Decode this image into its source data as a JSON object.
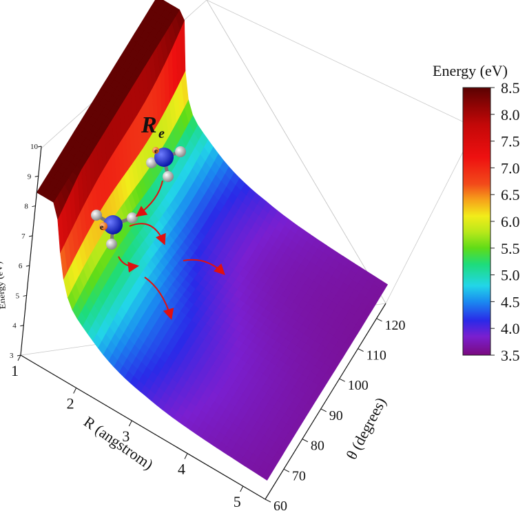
{
  "chart_data": {
    "type": "surface3d",
    "zlabel": "Energy (eV)",
    "xlabel": "R (angstrom)",
    "ylabel": "θ (degrees)",
    "colorbar_title": "Energy (eV)",
    "annotation": "R",
    "annotation_subscript": "e",
    "electron_label": "e",
    "x_ticks": [
      "1",
      "2",
      "3",
      "4",
      "5"
    ],
    "y_ticks": [
      "60",
      "70",
      "80",
      "90",
      "100",
      "110",
      "120"
    ],
    "z_ticks": [
      "3",
      "4",
      "5",
      "6",
      "7",
      "8",
      "9",
      "10"
    ],
    "xlim": [
      1,
      5.4
    ],
    "ylim": [
      60,
      125
    ],
    "zlim": [
      3,
      10
    ],
    "colorbar_ticks": [
      "8.5",
      "8.0",
      "7.5",
      "7.0",
      "6.5",
      "6.0",
      "5.5",
      "5.0",
      "4.5",
      "4.0",
      "3.5"
    ],
    "colorbar_range": [
      3.5,
      8.5
    ],
    "colorbar_stops": [
      {
        "value": 3.5,
        "color": "#7a0a7e"
      },
      {
        "value": 3.85,
        "color": "#7a1fd0"
      },
      {
        "value": 4.15,
        "color": "#2a2ae8"
      },
      {
        "value": 4.5,
        "color": "#1a8af0"
      },
      {
        "value": 4.8,
        "color": "#22d6e8"
      },
      {
        "value": 5.2,
        "color": "#1edc7a"
      },
      {
        "value": 5.5,
        "color": "#5fdc18"
      },
      {
        "value": 5.8,
        "color": "#b8e81a"
      },
      {
        "value": 6.1,
        "color": "#f2ec1a"
      },
      {
        "value": 6.4,
        "color": "#f6a21a"
      },
      {
        "value": 6.7,
        "color": "#f24a1a"
      },
      {
        "value": 7.2,
        "color": "#ee1010"
      },
      {
        "value": 7.8,
        "color": "#c40808"
      },
      {
        "value": 8.2,
        "color": "#8a0404"
      },
      {
        "value": 8.5,
        "color": "#5a0202"
      }
    ],
    "arrow_color": "#e01010"
  }
}
